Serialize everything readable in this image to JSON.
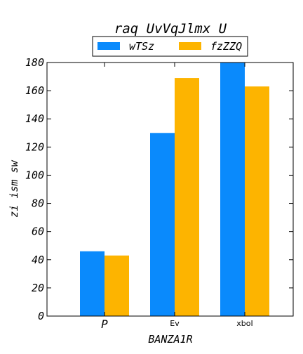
{
  "chart_data": {
    "type": "bar",
    "title": "raq UvVqJlmx U",
    "xlabel": "BANZA1R",
    "ylabel": "zi ism sw",
    "categories": [
      "P",
      "Ev",
      "xboI"
    ],
    "series": [
      {
        "name": "wTSz",
        "color": "#0a8afc",
        "values": [
          46,
          130,
          180
        ]
      },
      {
        "name": "fzZZQ",
        "color": "#fdb400",
        "values": [
          43,
          169,
          163
        ]
      }
    ],
    "ylim": [
      0,
      180
    ],
    "yticks": [
      0,
      20,
      40,
      60,
      80,
      100,
      120,
      140,
      160,
      180
    ],
    "grid": false,
    "legend_position": "top-center"
  }
}
